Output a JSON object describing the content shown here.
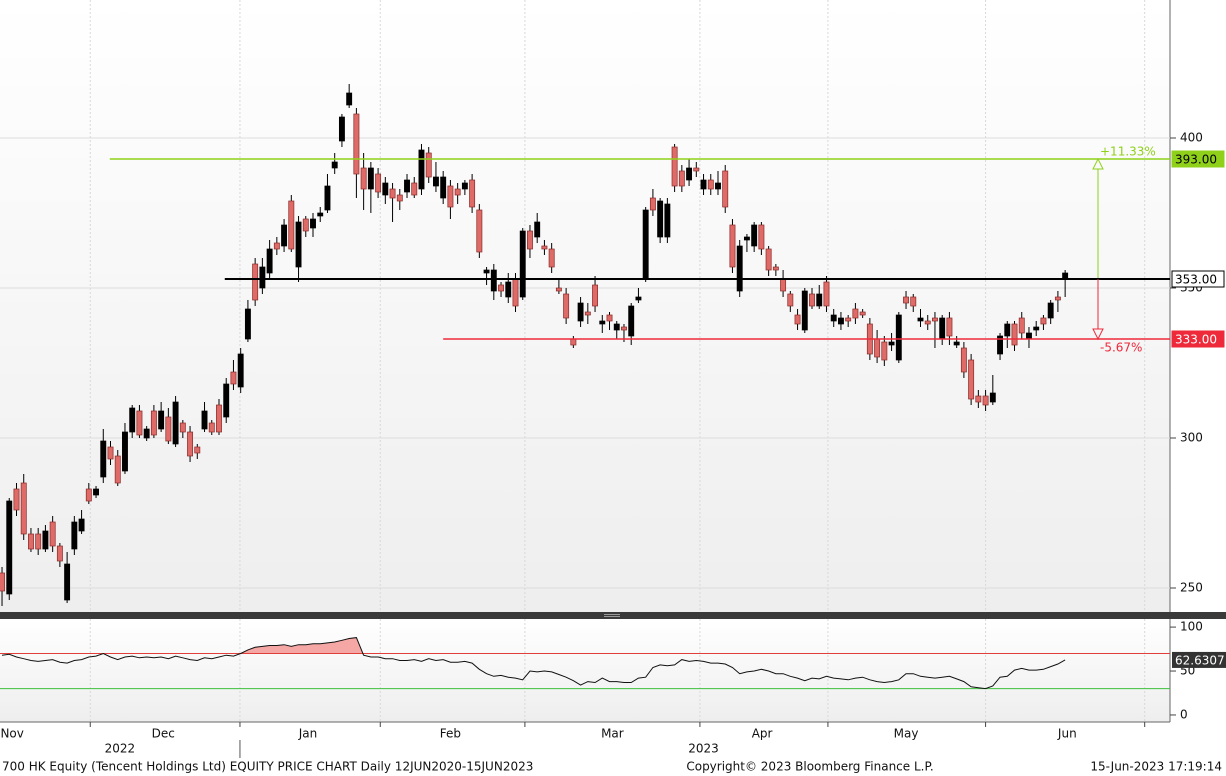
{
  "chart_data": [
    {
      "type": "candlestick",
      "ylim": [
        242,
        446
      ],
      "yticks": [
        250,
        300,
        350,
        400
      ],
      "grid": true,
      "up_color": "#000000",
      "down_color": "#de6b67",
      "candles": [
        [
          255,
          257,
          244,
          249
        ],
        [
          248,
          280,
          246,
          279
        ],
        [
          283,
          285,
          274,
          276
        ],
        [
          285,
          288,
          266,
          268
        ],
        [
          268,
          270,
          262,
          263
        ],
        [
          268,
          270,
          261,
          263
        ],
        [
          263,
          271,
          262,
          269
        ],
        [
          272,
          274,
          262,
          264
        ],
        [
          264,
          265,
          257,
          259
        ],
        [
          246,
          262,
          245,
          258
        ],
        [
          263,
          274,
          261,
          272
        ],
        [
          269,
          276,
          268,
          273
        ],
        [
          283,
          285,
          278,
          279
        ],
        [
          281,
          284,
          280,
          283
        ],
        [
          287,
          303,
          285,
          299
        ],
        [
          297,
          299,
          291,
          293
        ],
        [
          294,
          296,
          284,
          285
        ],
        [
          289,
          305,
          288,
          302
        ],
        [
          302,
          311,
          300,
          310
        ],
        [
          309,
          311,
          300,
          301
        ],
        [
          300,
          304,
          299,
          303
        ],
        [
          309,
          311,
          300,
          301
        ],
        [
          303,
          312,
          302,
          309
        ],
        [
          307,
          310,
          298,
          299
        ],
        [
          298,
          314,
          297,
          312
        ],
        [
          305,
          306,
          300,
          302
        ],
        [
          302,
          304,
          292,
          294
        ],
        [
          297,
          298,
          293,
          295
        ],
        [
          303,
          312,
          302,
          309
        ],
        [
          305,
          306,
          301,
          302
        ],
        [
          311,
          313,
          301,
          302
        ],
        [
          307,
          320,
          305,
          318
        ],
        [
          322,
          326,
          316,
          318
        ],
        [
          317,
          330,
          315,
          328
        ],
        [
          333,
          346,
          332,
          343
        ],
        [
          358,
          360,
          344,
          346
        ],
        [
          350,
          360,
          348,
          357
        ],
        [
          355,
          366,
          353,
          363
        ],
        [
          365,
          367,
          361,
          363
        ],
        [
          364,
          373,
          362,
          371
        ],
        [
          379,
          381,
          362,
          363
        ],
        [
          357,
          374,
          352,
          372
        ],
        [
          373,
          374,
          367,
          369
        ],
        [
          370,
          375,
          367,
          373
        ],
        [
          374,
          377,
          372,
          375
        ],
        [
          376,
          388,
          375,
          384
        ],
        [
          390,
          395,
          388,
          392
        ],
        [
          399,
          408,
          397,
          407
        ],
        [
          411,
          418,
          410,
          415
        ],
        [
          408,
          410,
          380,
          388
        ],
        [
          390,
          395,
          376,
          383
        ],
        [
          383,
          392,
          375,
          390
        ],
        [
          388,
          390,
          380,
          382
        ],
        [
          381,
          387,
          378,
          385
        ],
        [
          383,
          385,
          372,
          380
        ],
        [
          381,
          383,
          376,
          379
        ],
        [
          382,
          388,
          380,
          386
        ],
        [
          385,
          387,
          380,
          381
        ],
        [
          383,
          398,
          381,
          396
        ],
        [
          395,
          397,
          385,
          387
        ],
        [
          384,
          392,
          382,
          387
        ],
        [
          380,
          389,
          378,
          387
        ],
        [
          384,
          386,
          373,
          377
        ],
        [
          383,
          385,
          378,
          381
        ],
        [
          383,
          386,
          381,
          385
        ],
        [
          386,
          388,
          375,
          377
        ],
        [
          376,
          378,
          360,
          362
        ],
        [
          355,
          357,
          351,
          356
        ],
        [
          349,
          358,
          346,
          356
        ],
        [
          351,
          352,
          347,
          349
        ],
        [
          347,
          355,
          345,
          352
        ],
        [
          353,
          355,
          342,
          344
        ],
        [
          347,
          370,
          346,
          369
        ],
        [
          369,
          371,
          360,
          363
        ],
        [
          367,
          375,
          365,
          372
        ],
        [
          364,
          366,
          361,
          363
        ],
        [
          363,
          365,
          355,
          357
        ],
        [
          350,
          353,
          348,
          349
        ],
        [
          348,
          350,
          338,
          340
        ],
        [
          333,
          334,
          330,
          331
        ],
        [
          339,
          347,
          337,
          345
        ],
        [
          342,
          345,
          338,
          341
        ],
        [
          351,
          354,
          342,
          344
        ],
        [
          338,
          341,
          335,
          339
        ],
        [
          341,
          342,
          336,
          339
        ],
        [
          336,
          339,
          333,
          338
        ],
        [
          337,
          338,
          332,
          336
        ],
        [
          334,
          345,
          331,
          344
        ],
        [
          346,
          350,
          345,
          347
        ],
        [
          353,
          377,
          352,
          376
        ],
        [
          380,
          383,
          374,
          376
        ],
        [
          367,
          380,
          365,
          379
        ],
        [
          367,
          380,
          365,
          378
        ],
        [
          397,
          398,
          382,
          384
        ],
        [
          389,
          391,
          382,
          384
        ],
        [
          386,
          393,
          384,
          390
        ],
        [
          390,
          392,
          387,
          389
        ],
        [
          383,
          388,
          381,
          386
        ],
        [
          386,
          388,
          381,
          383
        ],
        [
          383,
          389,
          381,
          385
        ],
        [
          389,
          391,
          375,
          377
        ],
        [
          371,
          373,
          355,
          357
        ],
        [
          349,
          366,
          347,
          364
        ],
        [
          366,
          368,
          362,
          367
        ],
        [
          364,
          372,
          362,
          371
        ],
        [
          371,
          372,
          361,
          363
        ],
        [
          363,
          364,
          354,
          356
        ],
        [
          357,
          358,
          354,
          356
        ],
        [
          353,
          356,
          347,
          349
        ],
        [
          348,
          349,
          342,
          344
        ],
        [
          341,
          343,
          336,
          338
        ],
        [
          336,
          350,
          335,
          349
        ],
        [
          348,
          350,
          343,
          344
        ],
        [
          344,
          351,
          343,
          348
        ],
        [
          352,
          354,
          342,
          344
        ],
        [
          339,
          343,
          337,
          341
        ],
        [
          338,
          342,
          336,
          340
        ],
        [
          340,
          341,
          337,
          339
        ],
        [
          343,
          345,
          338,
          340
        ],
        [
          342,
          343,
          340,
          341
        ],
        [
          338,
          340,
          326,
          328
        ],
        [
          333,
          336,
          325,
          327
        ],
        [
          332,
          334,
          324,
          326
        ],
        [
          331,
          335,
          329,
          332
        ],
        [
          326,
          342,
          325,
          341
        ],
        [
          347,
          349,
          343,
          345
        ],
        [
          347,
          348,
          342,
          344
        ],
        [
          339,
          343,
          337,
          340
        ],
        [
          339,
          341,
          336,
          338
        ],
        [
          340,
          342,
          330,
          339
        ],
        [
          333,
          341,
          331,
          340
        ],
        [
          340,
          342,
          331,
          334
        ],
        [
          331,
          334,
          330,
          332
        ],
        [
          330,
          332,
          320,
          322
        ],
        [
          326,
          328,
          311,
          313
        ],
        [
          314,
          316,
          310,
          312
        ],
        [
          314,
          316,
          309,
          311
        ],
        [
          312,
          321,
          311,
          315
        ],
        [
          328,
          335,
          326,
          334
        ],
        [
          334,
          339,
          330,
          338
        ],
        [
          338,
          339,
          329,
          331
        ],
        [
          340,
          342,
          333,
          335
        ],
        [
          333,
          337,
          330,
          335
        ],
        [
          336,
          339,
          334,
          337
        ],
        [
          340,
          341,
          336,
          338
        ],
        [
          340,
          346,
          338,
          345
        ],
        [
          347,
          349,
          342,
          346
        ],
        [
          353,
          356,
          347,
          355
        ]
      ],
      "levels": [
        {
          "value": 393,
          "label": "393.00",
          "color": "#8fd11a",
          "from": 14.9,
          "annotation": "+11.33%"
        },
        {
          "value": 353,
          "label": "353.00",
          "color": "#000000",
          "from": 30.8
        },
        {
          "value": 333,
          "label": "333.00",
          "color": "#ee2a3a",
          "from": 61,
          "annotation": "-5.67%"
        }
      ]
    },
    {
      "type": "line",
      "ylim": [
        -8,
        109.2
      ],
      "yticks": [
        0,
        50,
        100
      ],
      "color": "#111111",
      "bands": [
        {
          "value": 70,
          "color": "#e0403c",
          "fill": "#f4a7a4"
        },
        {
          "value": 30,
          "color": "#3ec03e"
        }
      ],
      "values": [
        68,
        69,
        66,
        64,
        62,
        61,
        62,
        63,
        60,
        59,
        62,
        63,
        66,
        67,
        70,
        66,
        63,
        66,
        67,
        65,
        66,
        65,
        66,
        64,
        67,
        65,
        63,
        62,
        65,
        64,
        66,
        68,
        67,
        70,
        74,
        77,
        78,
        79,
        79,
        80,
        78,
        80,
        80,
        81,
        81,
        82,
        83,
        85,
        87,
        88,
        68,
        66,
        66,
        64,
        64,
        62,
        62,
        63,
        61,
        64,
        62,
        63,
        60,
        60,
        61,
        59,
        52,
        47,
        44,
        45,
        43,
        42,
        40,
        50,
        49,
        50,
        49,
        46,
        43,
        39,
        34,
        38,
        37,
        42,
        38,
        38,
        37,
        37,
        42,
        43,
        54,
        57,
        56,
        57,
        63,
        61,
        62,
        61,
        59,
        59,
        58,
        54,
        47,
        49,
        50,
        52,
        50,
        47,
        47,
        44,
        42,
        39,
        42,
        41,
        44,
        42,
        41,
        40,
        42,
        43,
        40,
        38,
        37,
        38,
        40,
        47,
        47,
        44,
        43,
        42,
        43,
        44,
        41,
        38,
        32,
        31,
        30,
        33,
        43,
        44,
        51,
        53,
        51,
        51,
        52,
        55,
        58,
        62.6307
      ]
    }
  ],
  "x_axis": {
    "xlim": [
      -0.28,
      161.5
    ],
    "xticks": [
      12.2,
      32.9,
      52.3,
      72.3,
      96.5,
      114.2,
      136,
      158
    ],
    "month_labels": [
      {
        "value": 1.4,
        "label": "Nov"
      },
      {
        "value": 22.3,
        "label": "Dec"
      },
      {
        "value": 42.3,
        "label": "Jan"
      },
      {
        "value": 62,
        "label": "Feb"
      },
      {
        "value": 84.4,
        "label": "Mar"
      },
      {
        "value": 105.1,
        "label": "Apr"
      },
      {
        "value": 125,
        "label": "May"
      },
      {
        "value": 147.3,
        "label": "Jun"
      }
    ],
    "year_labels": [
      {
        "value": 16.3,
        "label": "2022"
      },
      {
        "value": 97,
        "label": "2023"
      }
    ],
    "year_boundary": 32.9
  },
  "footer": {
    "left": "700 HK Equity (Tencent Holdings Ltd) EQUITY PRICE CHART  Daily 12JUN2020-15JUN2023",
    "center": "Copyright© 2023 Bloomberg Finance L.P.",
    "right": "15-Jun-2023 17:19:14"
  }
}
